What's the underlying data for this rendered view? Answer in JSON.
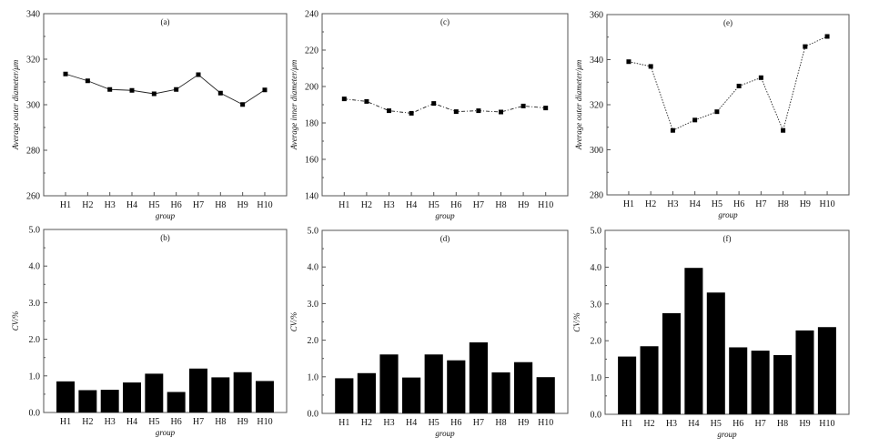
{
  "chart_data": [
    {
      "id": "a",
      "type": "line",
      "title": "(a)",
      "xlabel": "group",
      "ylabel": "Average outer diameter/μm",
      "categories": [
        "H1",
        "H2",
        "H3",
        "H4",
        "H5",
        "H6",
        "H7",
        "H8",
        "H9",
        "H10"
      ],
      "values": [
        313.5,
        310.5,
        306.7,
        306.3,
        304.8,
        306.7,
        313.2,
        305.1,
        300.1,
        306.5
      ],
      "ylim": [
        260,
        340
      ],
      "yticks": [
        "260",
        "280",
        "300",
        "320",
        "340"
      ],
      "line_style": "solid"
    },
    {
      "id": "c",
      "type": "line",
      "title": "(c)",
      "xlabel": "group",
      "ylabel": "Average inner diameter/μm",
      "categories": [
        "H1",
        "H2",
        "H3",
        "H4",
        "H5",
        "H6",
        "H7",
        "H8",
        "H9",
        "H10"
      ],
      "values": [
        193.2,
        191.8,
        186.7,
        185.3,
        190.7,
        186.2,
        186.7,
        186.0,
        189.3,
        188.2
      ],
      "ylim": [
        140,
        240
      ],
      "yticks": [
        "140",
        "160",
        "180",
        "200",
        "220",
        "240"
      ],
      "line_style": "dashdot"
    },
    {
      "id": "e",
      "type": "line",
      "title": "(e)",
      "xlabel": "group",
      "ylabel": "Average outer diameter/μm",
      "categories": [
        "H1",
        "H2",
        "H3",
        "H4",
        "H5",
        "H6",
        "H7",
        "H8",
        "H9",
        "H10"
      ],
      "values": [
        339.1,
        337.0,
        308.6,
        313.2,
        316.9,
        328.3,
        332.0,
        308.6,
        345.8,
        350.3
      ],
      "ylim": [
        280,
        360
      ],
      "yticks": [
        "280",
        "300",
        "320",
        "340",
        "360"
      ],
      "line_style": "dotted"
    },
    {
      "id": "b",
      "type": "bar",
      "title": "(b)",
      "xlabel": "group",
      "ylabel": "CV/%",
      "categories": [
        "H1",
        "H2",
        "H3",
        "H4",
        "H5",
        "H6",
        "H7",
        "H8",
        "H9",
        "H10"
      ],
      "values": [
        0.85,
        0.61,
        0.62,
        0.82,
        1.06,
        0.56,
        1.2,
        0.96,
        1.1,
        0.86
      ],
      "ylim": [
        0,
        5
      ],
      "yticks": [
        "0.0",
        "1.0",
        "2.0",
        "3.0",
        "4.0",
        "5.0"
      ]
    },
    {
      "id": "d",
      "type": "bar",
      "title": "(d)",
      "xlabel": "group",
      "ylabel": "CV/%",
      "categories": [
        "H1",
        "H2",
        "H3",
        "H4",
        "H5",
        "H6",
        "H7",
        "H8",
        "H9",
        "H10"
      ],
      "values": [
        0.96,
        1.1,
        1.61,
        0.98,
        1.61,
        1.45,
        1.94,
        1.12,
        1.4,
        0.99
      ],
      "ylim": [
        0,
        5
      ],
      "yticks": [
        "0.0",
        "1.0",
        "2.0",
        "3.0",
        "4.0",
        "5.0"
      ]
    },
    {
      "id": "f",
      "type": "bar",
      "title": "(f)",
      "xlabel": "group",
      "ylabel": "CV/%",
      "categories": [
        "H1",
        "H2",
        "H3",
        "H4",
        "H5",
        "H6",
        "H7",
        "H8",
        "H9",
        "H10"
      ],
      "values": [
        1.57,
        1.85,
        2.75,
        3.98,
        3.31,
        1.82,
        1.73,
        1.61,
        2.28,
        2.37
      ],
      "ylim": [
        0,
        5
      ],
      "yticks": [
        "0.0",
        "1.0",
        "2.0",
        "3.0",
        "4.0",
        "5.0"
      ]
    }
  ]
}
